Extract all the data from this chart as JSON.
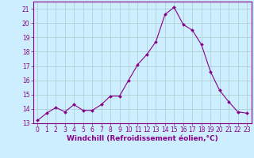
{
  "x": [
    0,
    1,
    2,
    3,
    4,
    5,
    6,
    7,
    8,
    9,
    10,
    11,
    12,
    13,
    14,
    15,
    16,
    17,
    18,
    19,
    20,
    21,
    22,
    23
  ],
  "y": [
    13.2,
    13.7,
    14.1,
    13.8,
    14.3,
    13.9,
    13.9,
    14.3,
    14.9,
    14.9,
    16.0,
    17.1,
    17.8,
    18.7,
    20.6,
    21.1,
    19.9,
    19.5,
    18.5,
    16.6,
    15.3,
    14.5,
    13.8,
    13.7
  ],
  "line_color": "#880088",
  "marker": "D",
  "marker_size": 2.0,
  "background_color": "#cceeff",
  "grid_color": "#aacccc",
  "xlabel": "Windchill (Refroidissement éolien,°C)",
  "xlim": [
    -0.5,
    23.5
  ],
  "ylim": [
    13,
    21.5
  ],
  "yticks": [
    13,
    14,
    15,
    16,
    17,
    18,
    19,
    20,
    21
  ],
  "xticks": [
    0,
    1,
    2,
    3,
    4,
    5,
    6,
    7,
    8,
    9,
    10,
    11,
    12,
    13,
    14,
    15,
    16,
    17,
    18,
    19,
    20,
    21,
    22,
    23
  ],
  "tick_fontsize": 5.5,
  "xlabel_fontsize": 6.5,
  "linewidth": 0.8
}
